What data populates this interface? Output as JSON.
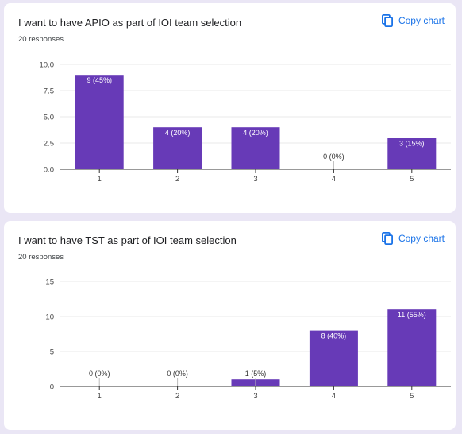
{
  "cards": [
    {
      "title": "I want to have APIO as part of IOI team selection",
      "responses": "20 responses",
      "copy_label": "Copy chart"
    },
    {
      "title": "I want to have TST as part of IOI team selection",
      "responses": "20 responses",
      "copy_label": "Copy chart"
    }
  ],
  "colors": {
    "bar": "#673ab7",
    "accent": "#1a73e8",
    "background": "#eae6f5",
    "card": "#ffffff"
  },
  "icons": {
    "copy": "copy-icon"
  },
  "chart_data": [
    {
      "type": "bar",
      "title": "I want to have APIO as part of IOI team selection",
      "categories": [
        "1",
        "2",
        "3",
        "4",
        "5"
      ],
      "values": [
        9,
        4,
        4,
        0,
        3
      ],
      "labels": [
        "9 (45%)",
        "4 (20%)",
        "4 (20%)",
        "0 (0%)",
        "3 (15%)"
      ],
      "yticks": [
        "0.0",
        "2.5",
        "5.0",
        "7.5",
        "10.0"
      ],
      "ylim": [
        0,
        10
      ],
      "grid": true,
      "xlabel": "",
      "ylabel": ""
    },
    {
      "type": "bar",
      "title": "I want to have TST as part of IOI team selection",
      "categories": [
        "1",
        "2",
        "3",
        "4",
        "5"
      ],
      "values": [
        0,
        0,
        1,
        8,
        11
      ],
      "labels": [
        "0 (0%)",
        "0 (0%)",
        "1 (5%)",
        "8 (40%)",
        "11 (55%)"
      ],
      "yticks": [
        "0",
        "5",
        "10",
        "15"
      ],
      "ylim": [
        0,
        15
      ],
      "grid": true,
      "xlabel": "",
      "ylabel": ""
    }
  ]
}
